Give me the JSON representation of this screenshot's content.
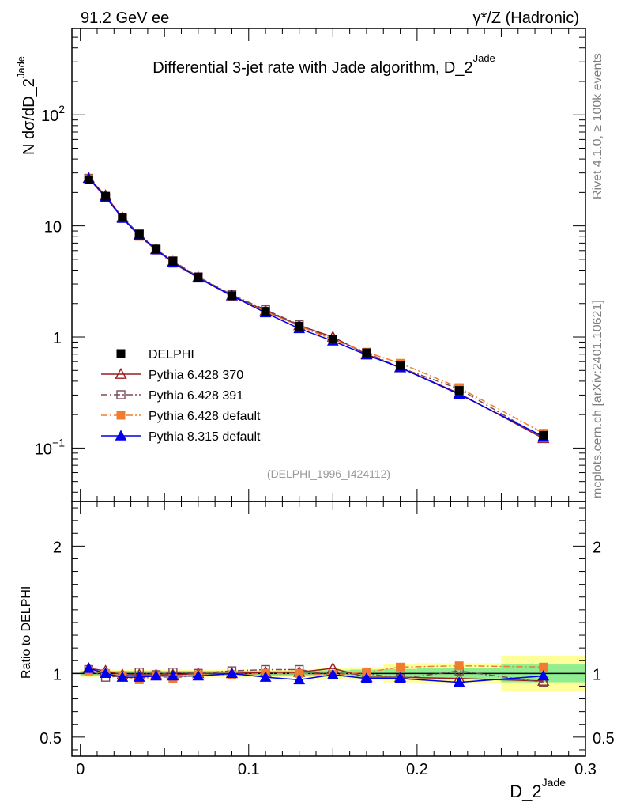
{
  "header": {
    "left": "91.2 GeV ee",
    "right": "γ*/Z (Hadronic)",
    "title": "Differential 3-jet rate with Jade algorithm, D_2",
    "title_sup": "Jade"
  },
  "side_labels": {
    "rivet": "Rivet 4.1.0, ≥ 100k events",
    "mcplots": "mcplots.cern.ch [arXiv:2401.10621]"
  },
  "analysis_tag": "(DELPHI_1996_I424112)",
  "chart_data": [
    {
      "type": "line",
      "panel": "main",
      "yscale": "log",
      "ylim": [
        0.033,
        600
      ],
      "xlim": [
        -0.005,
        0.3
      ],
      "ylabel": "N  dσ/dD_2",
      "ylabel_sup": "Jade",
      "yticks": [
        {
          "value": 0.1,
          "label": "10",
          "sup": "−1"
        },
        {
          "value": 1,
          "label": "1",
          "sup": ""
        },
        {
          "value": 10,
          "label": "10",
          "sup": ""
        },
        {
          "value": 100,
          "label": "10",
          "sup": "2"
        }
      ],
      "x": [
        0.005,
        0.015,
        0.025,
        0.035,
        0.045,
        0.055,
        0.07,
        0.09,
        0.11,
        0.13,
        0.15,
        0.17,
        0.19,
        0.225,
        0.275
      ],
      "series": [
        {
          "name": "DELPHI",
          "color": "#000000",
          "marker": "square-filled",
          "line": "none",
          "values": [
            26.0,
            18.5,
            12.0,
            8.4,
            6.2,
            4.8,
            3.45,
            2.35,
            1.7,
            1.25,
            0.96,
            0.72,
            0.55,
            0.33,
            0.13
          ]
        },
        {
          "name": "Pythia 6.428 370",
          "color": "#9b1c1c",
          "marker": "triangle-open",
          "line": "solid",
          "values": [
            27.0,
            18.8,
            11.9,
            8.3,
            6.15,
            4.75,
            3.45,
            2.36,
            1.72,
            1.27,
            1.0,
            0.7,
            0.53,
            0.31,
            0.122
          ]
        },
        {
          "name": "Pythia 6.428 391",
          "color": "#7a4a5a",
          "marker": "square-open",
          "line": "dashdot",
          "values": [
            26.8,
            18.0,
            11.8,
            8.5,
            6.15,
            4.85,
            3.48,
            2.4,
            1.76,
            1.29,
            0.95,
            0.72,
            0.53,
            0.34,
            0.123
          ]
        },
        {
          "name": "Pythia 6.428 default",
          "color": "#f07c30",
          "marker": "square-filled",
          "line": "dashdot",
          "values": [
            26.5,
            18.4,
            11.7,
            8.05,
            6.05,
            4.6,
            3.4,
            2.32,
            1.7,
            1.25,
            0.95,
            0.73,
            0.58,
            0.35,
            0.136
          ]
        },
        {
          "name": "Pythia 8.315 default",
          "color": "#0000ee",
          "marker": "triangle-filled",
          "line": "solid",
          "values": [
            26.8,
            18.2,
            11.7,
            8.2,
            6.1,
            4.7,
            3.4,
            2.35,
            1.65,
            1.19,
            0.92,
            0.69,
            0.53,
            0.305,
            0.127
          ]
        }
      ]
    },
    {
      "type": "line",
      "panel": "ratio",
      "ylim": [
        0.35,
        2.35
      ],
      "xlim": [
        -0.005,
        0.3
      ],
      "ylabel": "Ratio to DELPHI",
      "xlabel": "D_2",
      "xlabel_sup": "Jade",
      "yticks": [
        0.5,
        1,
        2
      ],
      "ytick_labels": [
        "0.5",
        "1",
        "2"
      ],
      "xticks": [
        0,
        0.1,
        0.2,
        0.3
      ],
      "xtick_labels": [
        "0",
        "0.1",
        "0.2",
        "0.3"
      ],
      "x": [
        0.005,
        0.015,
        0.025,
        0.035,
        0.045,
        0.055,
        0.07,
        0.09,
        0.11,
        0.13,
        0.15,
        0.17,
        0.19,
        0.225,
        0.275
      ],
      "bins": [
        [
          0,
          0.01
        ],
        [
          0.01,
          0.02
        ],
        [
          0.02,
          0.03
        ],
        [
          0.03,
          0.04
        ],
        [
          0.04,
          0.05
        ],
        [
          0.05,
          0.06
        ],
        [
          0.06,
          0.08
        ],
        [
          0.08,
          0.1
        ],
        [
          0.1,
          0.12
        ],
        [
          0.12,
          0.14
        ],
        [
          0.14,
          0.16
        ],
        [
          0.16,
          0.18
        ],
        [
          0.18,
          0.2
        ],
        [
          0.2,
          0.25
        ],
        [
          0.25,
          0.3
        ]
      ],
      "band_stat": [
        0.02,
        0.02,
        0.02,
        0.02,
        0.02,
        0.02,
        0.02,
        0.02,
        0.02,
        0.02,
        0.025,
        0.03,
        0.035,
        0.04,
        0.07
      ],
      "band_total": [
        0.03,
        0.03,
        0.03,
        0.03,
        0.03,
        0.03,
        0.03,
        0.03,
        0.03,
        0.03,
        0.04,
        0.05,
        0.07,
        0.08,
        0.14
      ],
      "band_colors": {
        "stat": "#90ee90",
        "total": "#ffff99"
      },
      "series": [
        {
          "name": "Pythia 6.428 370",
          "color": "#9b1c1c",
          "marker": "triangle-open",
          "line": "solid",
          "values": [
            1.04,
            1.02,
            0.99,
            0.99,
            0.99,
            0.99,
            1.0,
            1.0,
            1.01,
            1.01,
            1.04,
            0.97,
            0.97,
            0.96,
            0.94
          ]
        },
        {
          "name": "Pythia 6.428 391",
          "color": "#7a4a5a",
          "marker": "square-open",
          "line": "dashdot",
          "values": [
            1.03,
            0.97,
            0.98,
            1.01,
            0.99,
            1.01,
            1.0,
            1.02,
            1.03,
            1.03,
            0.99,
            1.0,
            0.96,
            1.02,
            0.93
          ]
        },
        {
          "name": "Pythia 6.428 default",
          "color": "#f07c30",
          "marker": "square-filled",
          "line": "dashdot",
          "values": [
            1.02,
            1.0,
            0.98,
            0.95,
            0.98,
            0.96,
            0.99,
            0.99,
            1.0,
            1.0,
            0.99,
            1.01,
            1.05,
            1.06,
            1.05
          ]
        },
        {
          "name": "Pythia 8.315 default",
          "color": "#0000ee",
          "marker": "triangle-filled",
          "line": "solid",
          "values": [
            1.04,
            1.0,
            0.97,
            0.97,
            0.98,
            0.98,
            0.98,
            1.0,
            0.97,
            0.95,
            0.99,
            0.96,
            0.96,
            0.93,
            0.98
          ]
        }
      ]
    }
  ]
}
